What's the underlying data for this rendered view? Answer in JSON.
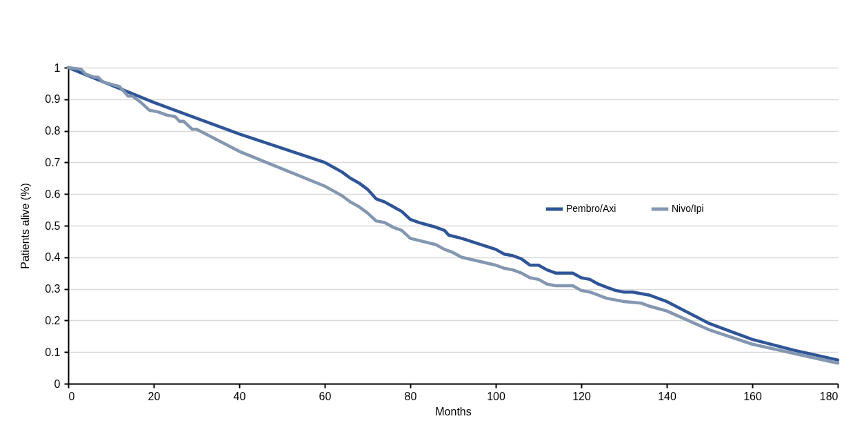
{
  "chart_data": {
    "type": "line",
    "xlabel": "Months",
    "ylabel": "Patients alive (%)",
    "xlim": [
      0,
      180
    ],
    "xticks": [
      0,
      20,
      40,
      60,
      80,
      100,
      120,
      140,
      160,
      180
    ],
    "ylim": [
      0,
      1
    ],
    "yticks": [
      0,
      0.1,
      0.2,
      0.3,
      0.4,
      0.5,
      0.6,
      0.7,
      0.8,
      0.9,
      1
    ],
    "grid": "y",
    "legend": "right",
    "marker": "none",
    "line_style": "solid",
    "series": [
      {
        "name": "Pembro/Axi",
        "color": "#2f5597",
        "x": [
          0,
          20,
          40,
          60,
          62,
          64,
          66,
          68,
          70,
          72,
          74,
          76,
          78,
          80,
          82,
          86,
          88,
          89,
          92,
          100,
          102,
          104,
          106,
          108,
          110,
          112,
          114,
          118,
          120,
          122,
          124,
          126,
          128,
          130,
          132,
          136,
          138,
          140,
          145,
          150,
          160,
          170,
          180
        ],
        "values": [
          1,
          0.89,
          0.79,
          0.7,
          0.685,
          0.67,
          0.65,
          0.635,
          0.615,
          0.585,
          0.575,
          0.56,
          0.545,
          0.52,
          0.51,
          0.495,
          0.485,
          0.47,
          0.46,
          0.425,
          0.41,
          0.405,
          0.395,
          0.375,
          0.375,
          0.36,
          0.35,
          0.35,
          0.335,
          0.33,
          0.315,
          0.305,
          0.295,
          0.29,
          0.29,
          0.28,
          0.27,
          0.26,
          0.225,
          0.19,
          0.14,
          0.105,
          0.075
        ]
      },
      {
        "name": "Nivo/Ipi",
        "color": "#8497b0",
        "x": [
          0,
          3,
          4,
          6,
          7,
          8,
          12,
          14,
          15,
          17,
          19,
          21,
          23,
          25,
          26,
          27,
          29,
          30,
          40,
          60,
          62,
          64,
          66,
          68,
          70,
          72,
          74,
          76,
          78,
          80,
          86,
          88,
          90,
          92,
          100,
          102,
          104,
          106,
          108,
          110,
          112,
          114,
          118,
          120,
          122,
          124,
          126,
          128,
          130,
          134,
          136,
          140,
          150,
          160,
          170,
          180
        ],
        "values": [
          1,
          0.995,
          0.98,
          0.97,
          0.97,
          0.955,
          0.94,
          0.91,
          0.91,
          0.89,
          0.865,
          0.86,
          0.85,
          0.845,
          0.83,
          0.83,
          0.805,
          0.805,
          0.735,
          0.625,
          0.61,
          0.595,
          0.575,
          0.56,
          0.54,
          0.515,
          0.51,
          0.495,
          0.485,
          0.46,
          0.44,
          0.425,
          0.415,
          0.4,
          0.375,
          0.365,
          0.36,
          0.35,
          0.335,
          0.33,
          0.315,
          0.31,
          0.31,
          0.295,
          0.29,
          0.28,
          0.27,
          0.265,
          0.26,
          0.255,
          0.245,
          0.23,
          0.17,
          0.125,
          0.095,
          0.065
        ]
      }
    ]
  }
}
